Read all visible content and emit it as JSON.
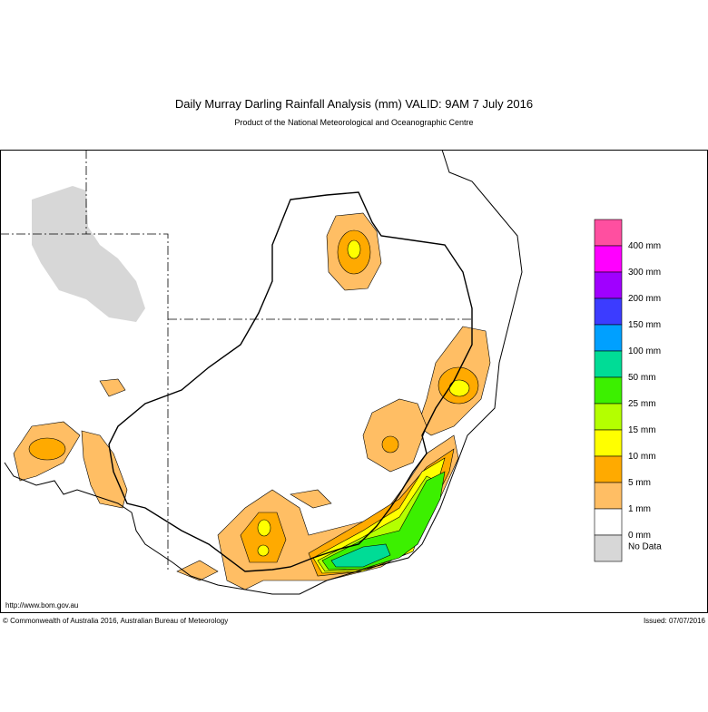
{
  "header": {
    "title": "Daily Murray Darling Rainfall Analysis (mm)  VALID: 9AM  7 July 2016",
    "subtitle": "Product of the National Meteorological and Oceanographic Centre"
  },
  "legend": {
    "items": [
      {
        "label": "400 mm",
        "color": "#ff4fa0"
      },
      {
        "label": "300 mm",
        "color": "#ff00ff"
      },
      {
        "label": "200 mm",
        "color": "#a000ff"
      },
      {
        "label": "150 mm",
        "color": "#3c3cff"
      },
      {
        "label": "100 mm",
        "color": "#00a0ff"
      },
      {
        "label": "50 mm",
        "color": "#00dc96"
      },
      {
        "label": "25 mm",
        "color": "#3cf000"
      },
      {
        "label": "15 mm",
        "color": "#b4ff00"
      },
      {
        "label": "10 mm",
        "color": "#ffff00"
      },
      {
        "label": "5 mm",
        "color": "#ffaa00"
      },
      {
        "label": "1 mm",
        "color": "#ffbe64"
      },
      {
        "label": "0 mm",
        "color": "#ffffff"
      },
      {
        "label": "No Data",
        "color": "#d7d7d7"
      }
    ]
  },
  "footer": {
    "url": "http://www.bom.gov.au",
    "copyright": "© Commonwealth of Australia 2016, Australian Bureau of Meteorology",
    "issued": "Issued: 07/07/2016"
  }
}
